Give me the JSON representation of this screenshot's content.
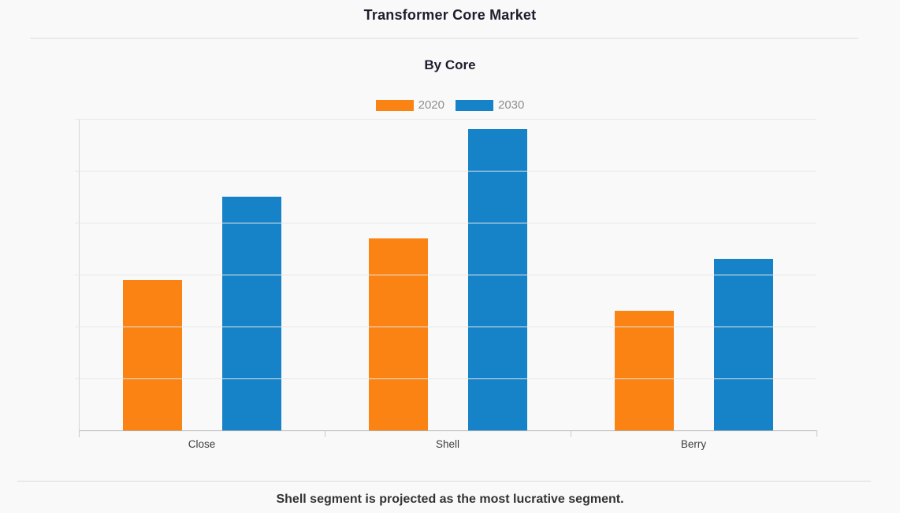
{
  "page": {
    "title": "Transformer Core Market",
    "subtitle": "By Core",
    "caption": "Shell segment is projected as the most lucrative segment."
  },
  "colors": {
    "background": "#f9f9f9",
    "series_2020": "#fa8314",
    "series_2030": "#1682c8",
    "gridline": "#e7e7e7",
    "axis_line": "#b3b3b3",
    "title_text": "#1d1d2e",
    "legend_text": "#8e8e8e",
    "axis_label_text": "#3d3d3d"
  },
  "chart_data": {
    "type": "bar",
    "title": "Transformer Core Market",
    "subtitle": "By Core",
    "categories": [
      "Close",
      "Shell",
      "Berry"
    ],
    "series": [
      {
        "name": "2020",
        "color": "#fa8314",
        "values": [
          2.9,
          3.7,
          2.3
        ]
      },
      {
        "name": "2030",
        "color": "#1682c8",
        "values": [
          4.5,
          5.8,
          3.3
        ]
      }
    ],
    "xlabel": "",
    "ylabel": "",
    "ylim": [
      0,
      6
    ],
    "y_tick_interval": 1,
    "y_axis_labels_visible": false,
    "grid": "horizontal",
    "legend_position": "top-center"
  }
}
